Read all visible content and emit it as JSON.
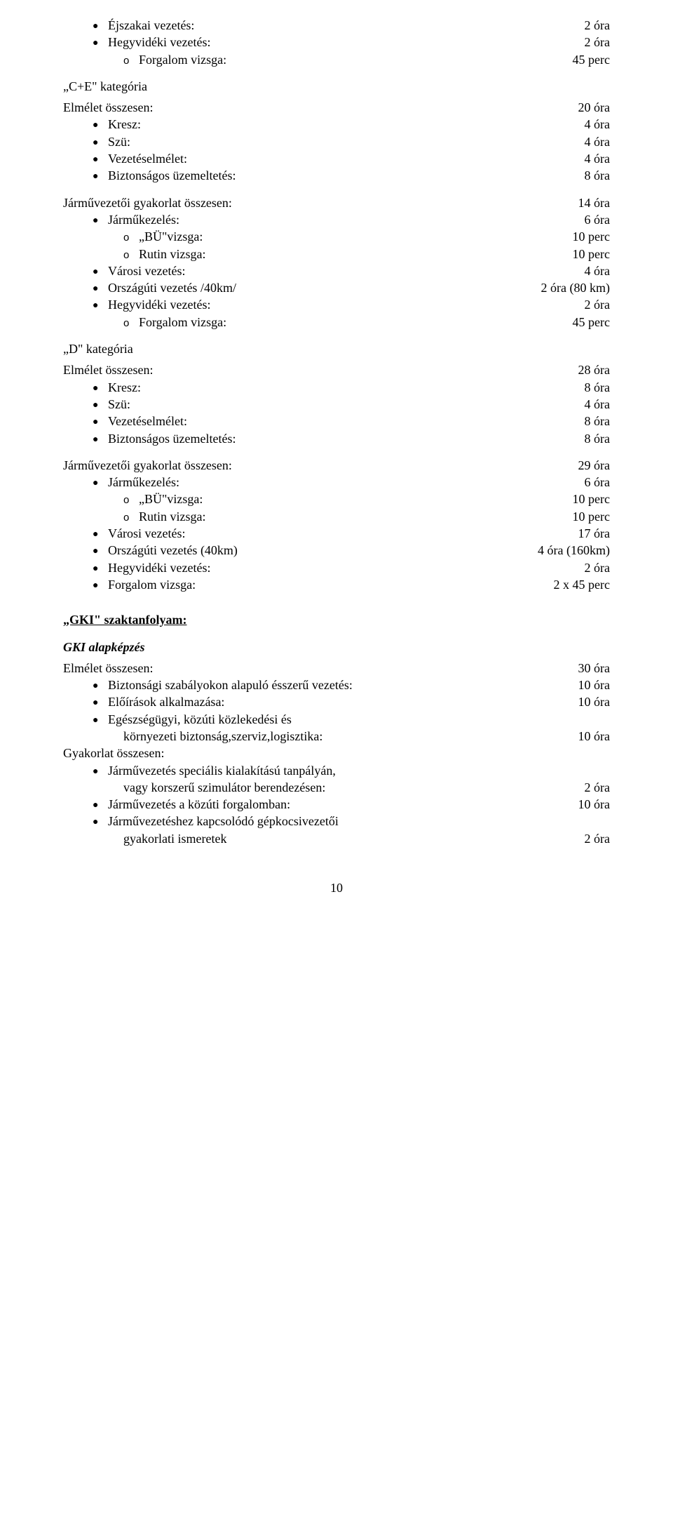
{
  "colors": {
    "text": "#000000",
    "background": "#ffffff"
  },
  "top_block": {
    "lines": [
      {
        "type": "bullet",
        "label": "Éjszakai vezetés:",
        "value": "2 óra"
      },
      {
        "type": "bullet",
        "label": "Hegyvidéki vezetés:",
        "value": "2 óra"
      },
      {
        "type": "sub",
        "label": "Forgalom vizsga:",
        "value": "45 perc"
      }
    ]
  },
  "ce": {
    "title": "„C+E\" kategória",
    "theory": {
      "header": {
        "label": "Elmélet összesen:",
        "value": "20 óra"
      },
      "lines": [
        {
          "type": "bullet",
          "label": "Kresz:",
          "value": "4 óra"
        },
        {
          "type": "bullet",
          "label": "Szü:",
          "value": "4 óra"
        },
        {
          "type": "bullet",
          "label": "Vezetéselmélet:",
          "value": "4 óra"
        },
        {
          "type": "bullet",
          "label": "Biztonságos üzemeltetés:",
          "value": "8 óra"
        }
      ]
    },
    "practice": {
      "header": {
        "label": "Járművezetői gyakorlat összesen:",
        "value": "14 óra"
      },
      "lines": [
        {
          "type": "bullet",
          "label": "Járműkezelés:",
          "value": "6 óra"
        },
        {
          "type": "sub",
          "label": "„BÜ\"vizsga:",
          "value": "10 perc"
        },
        {
          "type": "sub",
          "label": "Rutin vizsga:",
          "value": "10 perc"
        },
        {
          "type": "bullet",
          "label": "Városi vezetés:",
          "value": "4 óra"
        },
        {
          "type": "bullet",
          "label": "Országúti vezetés /40km/",
          "value": "2 óra (80 km)"
        },
        {
          "type": "bullet",
          "label": "Hegyvidéki vezetés:",
          "value": "2 óra"
        },
        {
          "type": "sub",
          "label": "Forgalom vizsga:",
          "value": "45 perc"
        }
      ]
    }
  },
  "d": {
    "title": "„D\" kategória",
    "theory": {
      "header": {
        "label": "Elmélet összesen:",
        "value": "28 óra"
      },
      "lines": [
        {
          "type": "bullet",
          "label": "Kresz:",
          "value": "8 óra"
        },
        {
          "type": "bullet",
          "label": "Szü:",
          "value": "4 óra"
        },
        {
          "type": "bullet",
          "label": "Vezetéselmélet:",
          "value": "8 óra"
        },
        {
          "type": "bullet",
          "label": "Biztonságos üzemeltetés:",
          "value": "8 óra"
        }
      ]
    },
    "practice": {
      "header": {
        "label": "Járművezetői gyakorlat összesen:",
        "value": "29 óra"
      },
      "lines": [
        {
          "type": "bullet",
          "label": "Járműkezelés:",
          "value": "6 óra"
        },
        {
          "type": "sub",
          "label": "„BÜ\"vizsga:",
          "value": "10 perc"
        },
        {
          "type": "sub",
          "label": "Rutin vizsga:",
          "value": "10 perc"
        },
        {
          "type": "bullet",
          "label": "Városi vezetés:",
          "value": "17 óra"
        },
        {
          "type": "bullet",
          "label": "Országúti vezetés (40km)",
          "value": "4 óra (160km)"
        },
        {
          "type": "bullet",
          "label": "Hegyvidéki vezetés:",
          "value": "2 óra"
        },
        {
          "type": "bullet",
          "label": "Forgalom vizsga:",
          "value": "2 x 45 perc"
        }
      ]
    }
  },
  "gki": {
    "title": "„GKI\" szaktanfolyam:",
    "subheading": "GKI alapképzés",
    "theory": {
      "header": {
        "label": "Elmélet összesen:",
        "value": "30 óra"
      },
      "lines": [
        {
          "type": "bullet",
          "label": "Biztonsági szabályokon alapuló ésszerű vezetés:",
          "value": "10 óra"
        },
        {
          "type": "bullet",
          "label": "Előírások alkalmazása:",
          "value": "10 óra"
        },
        {
          "type": "bullet",
          "label": "Egészségügyi, közúti közlekedési és",
          "value": ""
        },
        {
          "type": "indent",
          "label": "környezeti biztonság,szerviz,logisztika:",
          "value": "10 óra"
        }
      ]
    },
    "practice": {
      "header": {
        "label": "Gyakorlat összesen:",
        "value": ""
      },
      "lines": [
        {
          "type": "bullet",
          "label": "Járművezetés speciális kialakítású tanpályán,",
          "value": ""
        },
        {
          "type": "indent",
          "label": "vagy korszerű szimulátor berendezésen:",
          "value": "2 óra"
        },
        {
          "type": "bullet",
          "label": "Járművezetés a közúti forgalomban:",
          "value": "10 óra"
        },
        {
          "type": "bullet",
          "label": "Járművezetéshez kapcsolódó gépkocsivezetői",
          "value": ""
        },
        {
          "type": "indent",
          "label": "gyakorlati ismeretek",
          "value": "2 óra"
        }
      ]
    }
  },
  "page_number": "10"
}
